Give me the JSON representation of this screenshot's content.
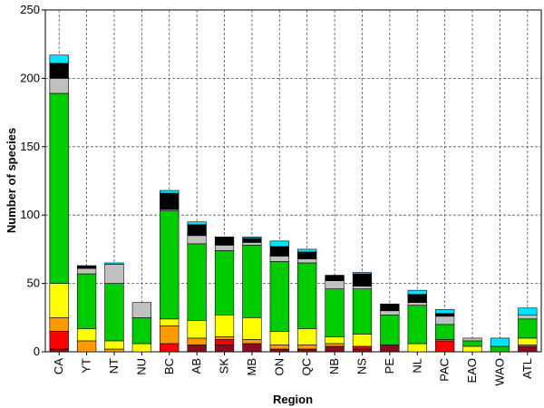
{
  "chart_data": {
    "type": "bar",
    "stacked": true,
    "xlabel": "Region",
    "ylabel": "Number of species",
    "ylim": [
      0,
      250
    ],
    "yticks": [
      0,
      50,
      100,
      150,
      200,
      250
    ],
    "grid": true,
    "categories": [
      "CA",
      "YT",
      "NT",
      "NU",
      "BC",
      "AB",
      "SK",
      "MB",
      "ON",
      "QC",
      "NB",
      "NS",
      "PE",
      "NL",
      "PAC",
      "EAO",
      "WAO",
      "ATL"
    ],
    "series": [
      {
        "color": "#8b0a1e",
        "values": [
          2,
          0,
          0,
          0,
          0,
          5,
          5,
          6,
          2,
          2,
          4,
          2,
          5,
          0,
          0,
          0,
          0,
          4
        ]
      },
      {
        "color": "#ff0000",
        "values": [
          13,
          0,
          0,
          0,
          6,
          0,
          4,
          0,
          0,
          0,
          0,
          2,
          0,
          0,
          8,
          0,
          0,
          0
        ]
      },
      {
        "color": "#ff9900",
        "values": [
          10,
          8,
          2,
          0,
          13,
          5,
          2,
          3,
          3,
          3,
          2,
          0,
          0,
          0,
          1,
          0,
          0,
          1
        ]
      },
      {
        "color": "#ffff00",
        "values": [
          25,
          9,
          6,
          6,
          5,
          13,
          16,
          16,
          10,
          12,
          5,
          9,
          0,
          6,
          0,
          4,
          0,
          5
        ]
      },
      {
        "color": "#00cc00",
        "values": [
          139,
          40,
          42,
          19,
          79,
          56,
          47,
          53,
          51,
          48,
          35,
          33,
          22,
          28,
          11,
          4,
          4,
          14
        ]
      },
      {
        "color": "#c0c0c0",
        "values": [
          11,
          4,
          14,
          11,
          1,
          6,
          4,
          2,
          4,
          3,
          6,
          2,
          3,
          2,
          6,
          2,
          0,
          3
        ]
      },
      {
        "color": "#000000",
        "values": [
          11,
          2,
          0,
          0,
          12,
          8,
          6,
          3,
          7,
          5,
          4,
          9,
          5,
          6,
          2,
          0,
          0,
          0
        ]
      },
      {
        "color": "#00e5ff",
        "values": [
          6,
          0,
          1,
          0,
          2,
          2,
          0,
          1,
          4,
          2,
          0,
          1,
          0,
          3,
          3,
          0,
          6,
          5
        ]
      }
    ]
  }
}
